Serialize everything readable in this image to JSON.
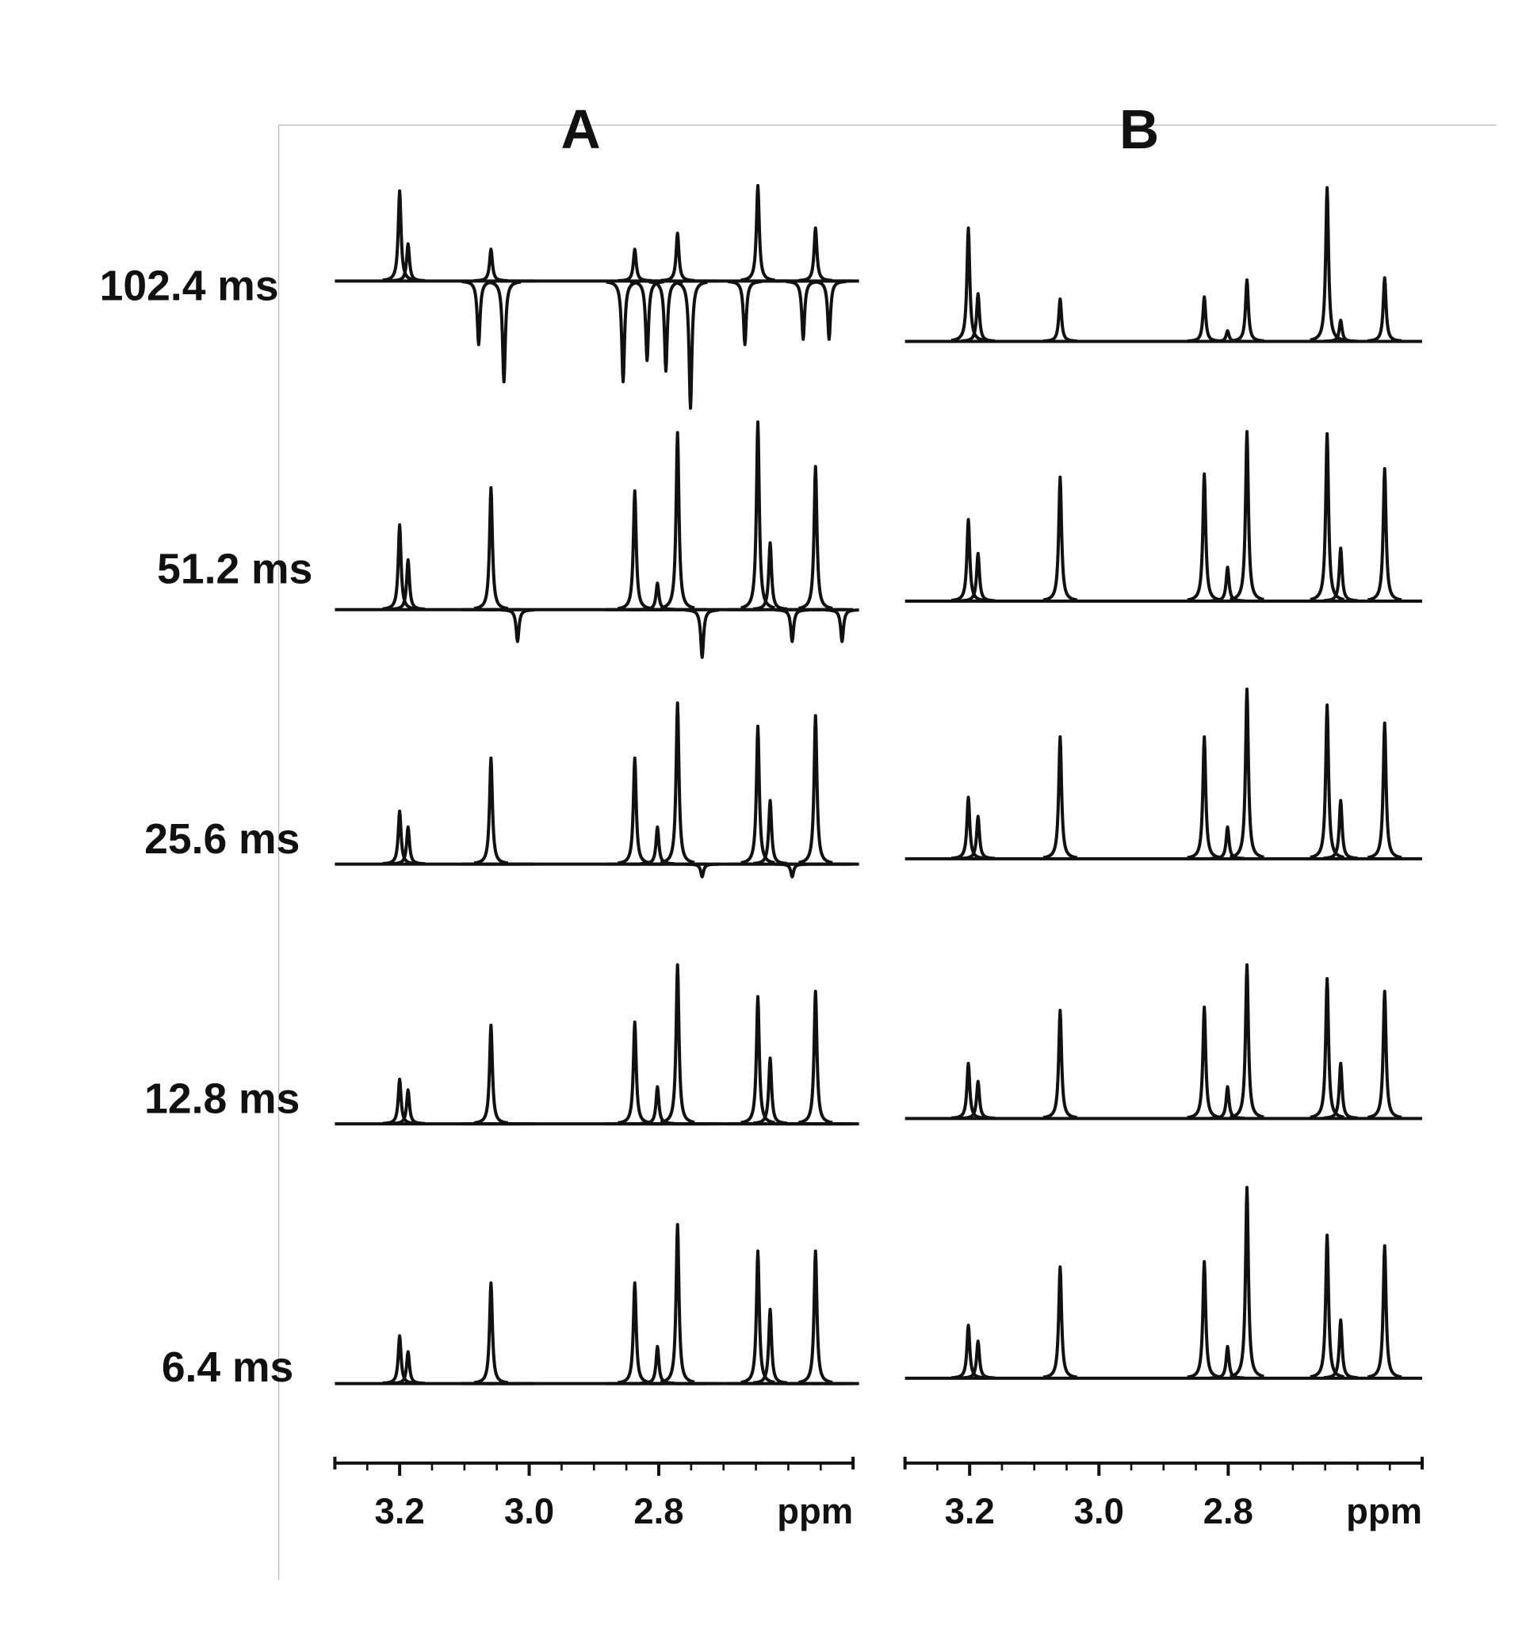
{
  "chart_data": [
    {
      "type": "spectrum",
      "title": "A",
      "xlabel": "ppm",
      "xlim": [
        3.3,
        2.5
      ],
      "xticks": [
        {
          "value": 3.2,
          "label": "3.2"
        },
        {
          "value": 3,
          "label": "3.0"
        },
        {
          "value": 2.8,
          "label": "2.8"
        }
      ],
      "xminor": [
        3.25,
        3.15,
        3.1,
        3.05,
        2.95,
        2.9,
        2.85,
        2.75,
        2.7,
        2.65,
        2.6,
        2.55
      ],
      "peaks": [
        3.2,
        3.187,
        3.059,
        2.837,
        2.802,
        2.771,
        2.647,
        2.628,
        2.558,
        3.078,
        3.039,
        2.855,
        2.818,
        2.789,
        2.751,
        2.667,
        2.577,
        2.537,
        3.018,
        2.733,
        2.594,
        2.517
      ],
      "series": [
        {
          "name": "102.4 ms",
          "values": [
            85,
            35,
            30,
            30,
            0,
            45,
            90,
            0,
            50,
            -60,
            -95,
            -95,
            -75,
            -85,
            -120,
            -60,
            -55,
            -55,
            0,
            0,
            0,
            0
          ]
        },
        {
          "name": "51.2 ms",
          "values": [
            80,
            47,
            115,
            112,
            25,
            167,
            177,
            63,
            135,
            0,
            0,
            0,
            0,
            0,
            0,
            0,
            0,
            0,
            -30,
            -45,
            -30,
            -30
          ]
        },
        {
          "name": "25.6 ms",
          "values": [
            50,
            35,
            100,
            100,
            35,
            152,
            130,
            60,
            140,
            0,
            0,
            0,
            0,
            0,
            0,
            0,
            0,
            0,
            0,
            -12,
            -12,
            0
          ]
        },
        {
          "name": "12.8 ms",
          "values": [
            42,
            32,
            93,
            96,
            35,
            150,
            120,
            62,
            125,
            0,
            0,
            0,
            0,
            0,
            0,
            0,
            0,
            0,
            0,
            0,
            0,
            0
          ]
        },
        {
          "name": "6.4 ms",
          "values": [
            45,
            30,
            95,
            95,
            35,
            150,
            125,
            70,
            125,
            0,
            0,
            0,
            0,
            0,
            0,
            0,
            0,
            0,
            0,
            0,
            0,
            0
          ]
        }
      ]
    },
    {
      "type": "spectrum",
      "title": "B",
      "xlabel": "ppm",
      "xlim": [
        3.3,
        2.5
      ],
      "xticks": [
        {
          "value": 3.2,
          "label": "3.2"
        },
        {
          "value": 3,
          "label": "3.0"
        },
        {
          "value": 2.8,
          "label": "2.8"
        }
      ],
      "xminor": [
        3.25,
        3.15,
        3.1,
        3.05,
        2.95,
        2.9,
        2.85,
        2.75,
        2.7,
        2.65,
        2.6,
        2.55
      ],
      "peaks": [
        3.202,
        3.187,
        3.06,
        2.837,
        2.801,
        2.771,
        2.647,
        2.626,
        2.558
      ],
      "series": [
        {
          "values": [
            107,
            45,
            40,
            42,
            10,
            58,
            145,
            20,
            60
          ]
        },
        {
          "values": [
            77,
            45,
            117,
            120,
            32,
            160,
            158,
            50,
            125
          ]
        },
        {
          "values": [
            58,
            40,
            115,
            115,
            30,
            160,
            145,
            55,
            128
          ]
        },
        {
          "values": [
            52,
            35,
            102,
            105,
            30,
            145,
            132,
            52,
            120
          ]
        },
        {
          "values": [
            50,
            35,
            105,
            110,
            30,
            180,
            135,
            55,
            125
          ]
        }
      ]
    }
  ]
}
